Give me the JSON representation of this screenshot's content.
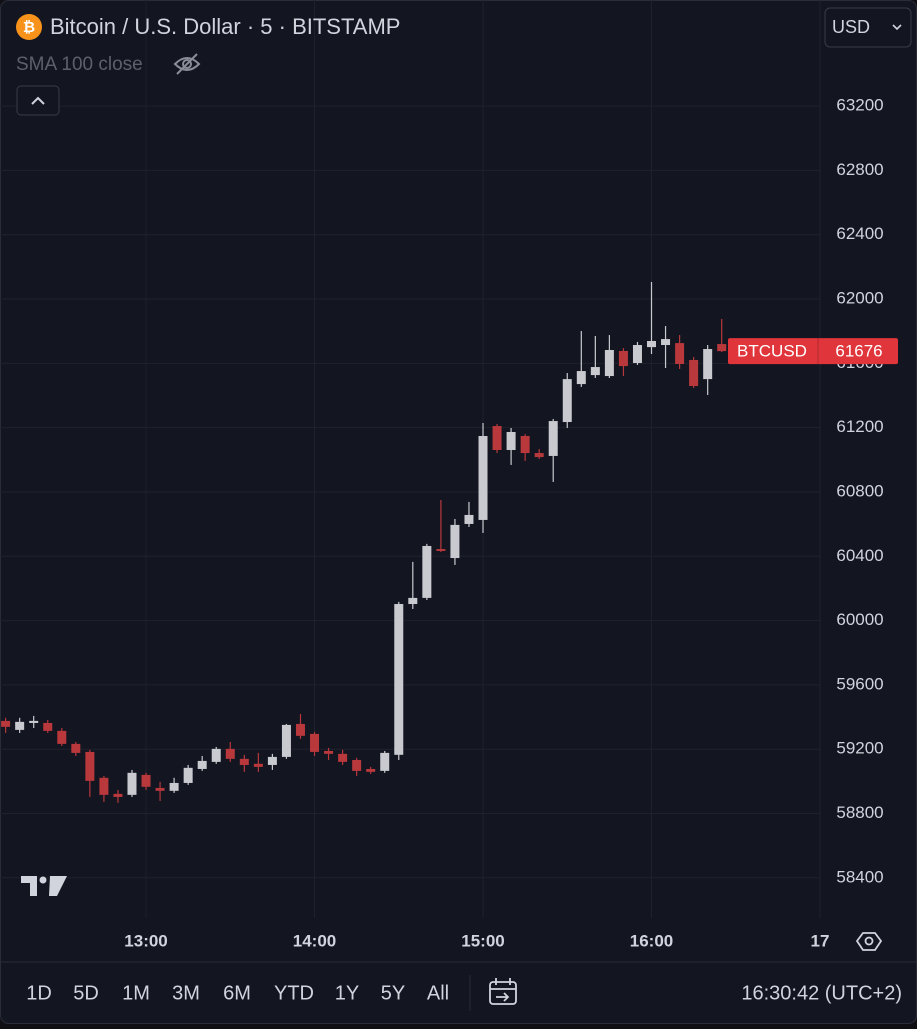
{
  "chart_data": {
    "type": "candlestick",
    "title": "Bitcoin / U.S. Dollar · 5 · BITSTAMP",
    "indicator": "SMA 100 close",
    "currency": "USD",
    "price_tag": {
      "label": "BTCUSD",
      "value": 61676
    },
    "up_color": "#c9cacf",
    "down_color": "#b8383c",
    "grid": true,
    "x": [
      "12:10",
      "12:15",
      "12:20",
      "12:25",
      "12:30",
      "12:35",
      "12:40",
      "12:45",
      "12:50",
      "12:55",
      "13:00",
      "13:05",
      "13:10",
      "13:15",
      "13:20",
      "13:25",
      "13:30",
      "13:35",
      "13:40",
      "13:45",
      "13:50",
      "13:55",
      "14:00",
      "14:05",
      "14:10",
      "14:15",
      "14:20",
      "14:25",
      "14:30",
      "14:35",
      "14:40",
      "14:45",
      "14:50",
      "14:55",
      "15:00",
      "15:05",
      "15:10",
      "15:15",
      "15:20",
      "15:25",
      "15:30",
      "15:35",
      "15:40",
      "15:45",
      "15:50",
      "15:55",
      "16:00",
      "16:05",
      "16:10",
      "16:15",
      "16:20",
      "16:25"
    ],
    "open": [
      59376,
      59320,
      59363,
      59363,
      59314,
      59233,
      59183,
      59022,
      58922,
      58916,
      59040,
      58959,
      58941,
      58990,
      59077,
      59121,
      59202,
      59140,
      59109,
      59102,
      59152,
      59357,
      59295,
      59189,
      59171,
      59133,
      59077,
      59065,
      59165,
      60103,
      60141,
      60445,
      60389,
      60601,
      60626,
      61210,
      61061,
      61148,
      61042,
      61024,
      61235,
      61471,
      61527,
      61521,
      61677,
      61602,
      61701,
      61714,
      61726,
      61621,
      61502,
      61720
    ],
    "high": [
      59395,
      59395,
      59407,
      59382,
      59332,
      59245,
      59196,
      59034,
      58947,
      59071,
      59053,
      58997,
      59022,
      59102,
      59158,
      59214,
      59245,
      59165,
      59177,
      59171,
      59357,
      59419,
      59308,
      59208,
      59196,
      59146,
      59090,
      59189,
      60116,
      60365,
      60477,
      60750,
      60632,
      60738,
      61229,
      61223,
      61198,
      61160,
      61067,
      61254,
      61540,
      61801,
      61770,
      61776,
      61695,
      61733,
      62106,
      61832,
      61776,
      61639,
      61714,
      61876
    ],
    "low": [
      59301,
      59301,
      59332,
      59301,
      59220,
      59158,
      58903,
      58872,
      58866,
      58903,
      58947,
      58878,
      58928,
      58978,
      59065,
      59109,
      59121,
      59059,
      59059,
      59071,
      59140,
      59264,
      59158,
      59133,
      59102,
      59034,
      59046,
      59053,
      59133,
      60072,
      60128,
      60427,
      60346,
      60582,
      60545,
      61042,
      60968,
      60993,
      61005,
      60862,
      61198,
      61453,
      61509,
      61509,
      61521,
      61590,
      61658,
      61571,
      61565,
      61447,
      61403,
      61670
    ],
    "close": [
      59339,
      59370,
      59376,
      59314,
      59233,
      59177,
      59003,
      58916,
      58903,
      59053,
      58966,
      58941,
      58990,
      59084,
      59127,
      59202,
      59140,
      59102,
      59090,
      59152,
      59351,
      59283,
      59183,
      59171,
      59121,
      59065,
      59059,
      59177,
      60103,
      60141,
      60464,
      60433,
      60595,
      60657,
      61148,
      61061,
      61173,
      61042,
      61017,
      61241,
      61502,
      61552,
      61577,
      61683,
      61583,
      61714,
      61739,
      61751,
      61596,
      61459,
      61689,
      61676
    ],
    "xlim": [
      "12:08",
      "17:00"
    ],
    "xticks": [
      "13:00",
      "14:00",
      "15:00",
      "16:00",
      {
        "value": "17:00",
        "label": "17"
      }
    ],
    "ylim": [
      58150,
      63860
    ],
    "yticks": [
      58400,
      58800,
      59200,
      59600,
      60000,
      60400,
      60800,
      61200,
      61600,
      62000,
      62400,
      62800,
      63200
    ]
  },
  "toolbar": {
    "ranges": [
      "1D",
      "5D",
      "1M",
      "3M",
      "6M",
      "YTD",
      "1Y",
      "5Y",
      "All"
    ],
    "clock": "16:30:42 (UTC+2)"
  }
}
